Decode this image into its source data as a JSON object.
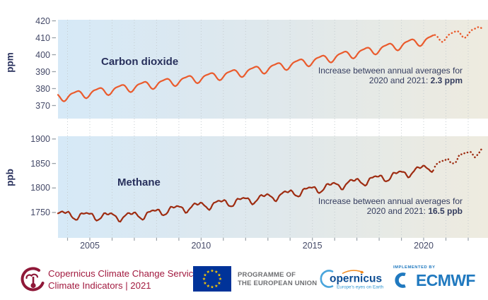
{
  "charts": [
    {
      "title": "Carbon dioxide",
      "unit_label": "ppm",
      "annotation": {
        "line1": "Increase between annual averages for",
        "line2_prefix": "2020 and 2021: ",
        "line2_value": "2.3 ppm"
      }
    },
    {
      "title": "Methane",
      "unit_label": "ppb",
      "annotation": {
        "line1": "Increase between annual averages for",
        "line2_prefix": "2020 and 2021: ",
        "line2_value": "16.5 ppb"
      }
    }
  ],
  "x_axis": {
    "tick_labels": [
      "2005",
      "2010",
      "2015",
      "2020"
    ],
    "tick_years": [
      2005,
      2010,
      2015,
      2020
    ],
    "gridline_years_start": 2004,
    "gridline_years_end": 2022
  },
  "chart_data": [
    {
      "type": "line",
      "name": "Carbon dioxide",
      "unit": "ppm",
      "years": [
        2003,
        2004,
        2005,
        2006,
        2007,
        2008,
        2009,
        2010,
        2011,
        2012,
        2013,
        2014,
        2015,
        2016,
        2017,
        2018,
        2019,
        2020,
        2021,
        2022
      ],
      "annual_averages": [
        374.8,
        376.6,
        378.4,
        380.2,
        382.0,
        383.8,
        385.5,
        387.2,
        389.0,
        391.0,
        393.1,
        395.3,
        397.5,
        399.9,
        402.2,
        404.6,
        407.1,
        409.7,
        412.0,
        414.4
      ],
      "seasonal_components": [
        {
          "amplitude": 2.3,
          "cycles_per_year": 1,
          "phase": -0.12
        },
        {
          "amplitude": 0.7,
          "cycles_per_year": 2,
          "phase": 0.1
        }
      ],
      "x_range": [
        2003.57,
        2022.7
      ],
      "solid_until": 2020.5,
      "yticks": [
        370,
        380,
        390,
        400,
        410,
        420
      ],
      "ylim": [
        362,
        422
      ],
      "line_color": "#ea5b2d",
      "increase_2020_to_2021_ppm": 2.3
    },
    {
      "type": "line",
      "name": "Methane",
      "unit": "ppb",
      "years": [
        2003,
        2004,
        2005,
        2006,
        2007,
        2008,
        2009,
        2010,
        2011,
        2012,
        2013,
        2014,
        2015,
        2016,
        2017,
        2018,
        2019,
        2020,
        2021,
        2022
      ],
      "annual_averages": [
        1747,
        1744,
        1743,
        1742,
        1746,
        1755,
        1761,
        1767,
        1772,
        1778,
        1785,
        1793,
        1801,
        1809,
        1816,
        1824,
        1834,
        1845,
        1861.5,
        1876
      ],
      "seasonal_components": [
        {
          "amplitude": 7,
          "cycles_per_year": 1,
          "phase": -0.6
        },
        {
          "amplitude": 3,
          "cycles_per_year": 2,
          "phase": 0.05
        },
        {
          "amplitude": 1.5,
          "cycles_per_year": 3.7,
          "phase": 0.3
        }
      ],
      "x_range": [
        2003.57,
        2022.7
      ],
      "solid_until": 2020.5,
      "yticks": [
        1750,
        1800,
        1850,
        1900
      ],
      "ylim": [
        1700,
        1903
      ],
      "line_color": "#9e2c11",
      "increase_2020_to_2021_ppb": 16.5
    }
  ],
  "styles": {
    "title_navy": "#28305c",
    "tick_text": "#454a68",
    "grid_color": "#c5ccd0",
    "tick_mark": "#99a1a8",
    "plot_gradient": [
      "#d6e9f7",
      "#dfe8ec",
      "#eeebdf"
    ]
  },
  "footer": {
    "c3s": {
      "line1": "Copernicus Climate Change Service",
      "line2": "Climate Indicators | 2021",
      "color": "#a21a3f"
    },
    "eu": {
      "line1": "PROGRAMME OF",
      "line2": "THE EUROPEAN UNION",
      "flag_stars": 12,
      "flag_blue": "#003399",
      "star_color": "#ffcc00"
    },
    "copernicus": {
      "wordmark": "opernicus",
      "tagline": "Europe's eyes on Earth"
    },
    "ecmwf": {
      "implemented_by": "IMPLEMENTED BY",
      "wordmark": "ECMWF",
      "color": "#2079bf"
    }
  }
}
